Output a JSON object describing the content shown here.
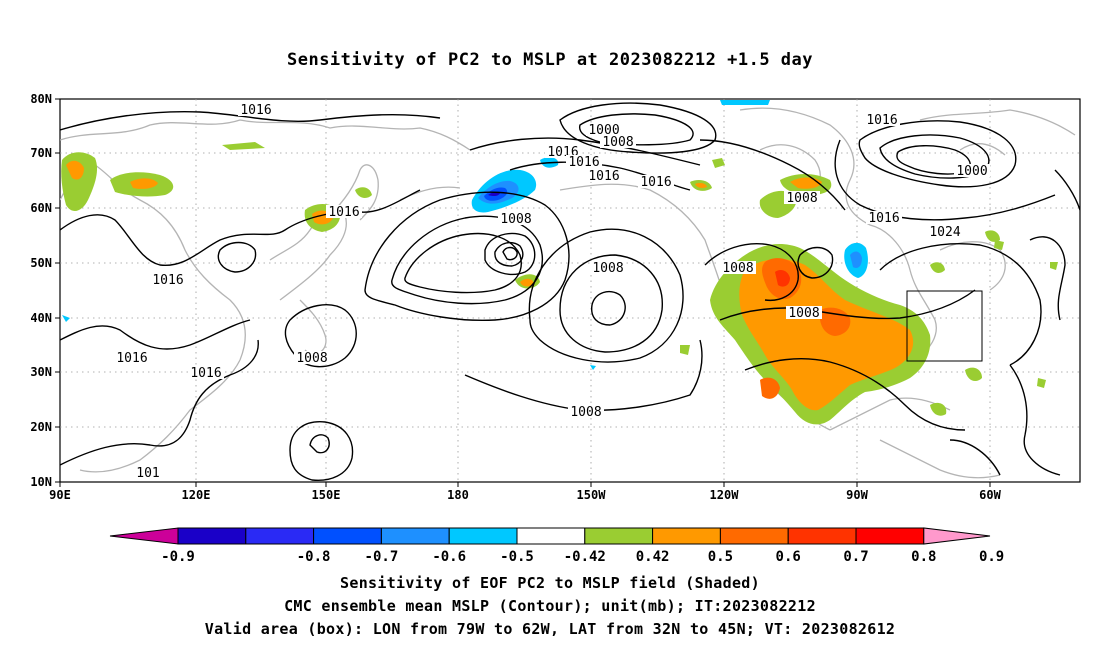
{
  "title": "Sensitivity of PC2 to MSLP at 2023082212 +1.5 day",
  "lat_labels": [
    "80N",
    "70N",
    "60N",
    "50N",
    "40N",
    "30N",
    "20N",
    "10N"
  ],
  "lon_labels": [
    "90E",
    "120E",
    "150E",
    "180",
    "150W",
    "120W",
    "90W",
    "60W"
  ],
  "contour_labels": [
    "1016",
    "1000",
    "1008",
    "1016",
    "1016",
    "1016",
    "1016",
    "1008",
    "1000",
    "1016",
    "1008",
    "1016",
    "1024",
    "1016",
    "1016",
    "1008",
    "1008",
    "1008",
    "1016",
    "1016",
    "1008",
    "1008",
    "101"
  ],
  "colorbar": {
    "labels": [
      "-0.9",
      "-0.8",
      "-0.7",
      "-0.6",
      "-0.5",
      "-0.42",
      "0.42",
      "0.5",
      "0.6",
      "0.7",
      "0.8",
      "0.9"
    ],
    "colors": [
      "#1a00c8",
      "#2a2af5",
      "#0050ff",
      "#1e90ff",
      "#00c8ff",
      "#ffffff",
      "#9acd32",
      "#ff9900",
      "#ff6a00",
      "#ff3300",
      "#ff0000"
    ],
    "end_low": "#cc0099",
    "end_high": "#ff99cc"
  },
  "caption": {
    "line1": "Sensitivity of EOF PC2 to MSLP field (Shaded)",
    "line2": "CMC ensemble mean MSLP (Contour); unit(mb); IT:2023082212",
    "line3": "Valid area (box): LON from 79W to 62W, LAT from 32N to 45N; VT: 2023082612"
  }
}
